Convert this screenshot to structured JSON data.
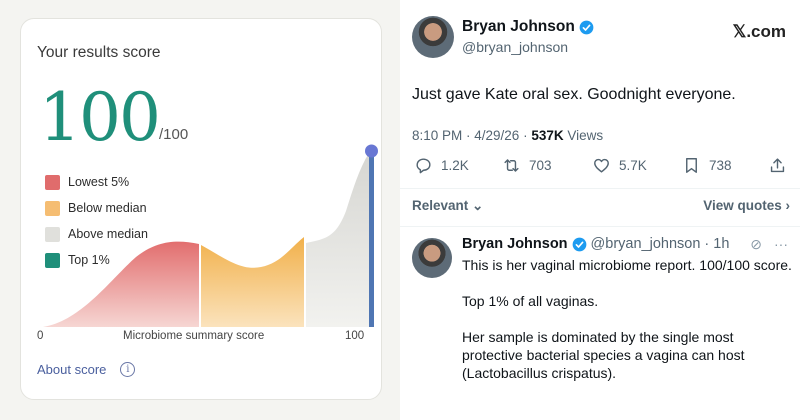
{
  "score_card": {
    "title": "Your results score",
    "score": "100",
    "score_max": "/100",
    "legend": [
      {
        "label": "Lowest 5%",
        "color": "#e06c6c"
      },
      {
        "label": "Below median",
        "color": "#f5bd72"
      },
      {
        "label": "Above median",
        "color": "#e0e0dc"
      },
      {
        "label": "Top 1%",
        "color": "#1f8f7a"
      }
    ],
    "axis_min": "0",
    "axis_title": "Microbiome summary score",
    "axis_max": "100",
    "about_link": "About score",
    "marker_value": 100
  },
  "tweet": {
    "author_name": "Bryan Johnson",
    "author_handle": "@bryan_johnson",
    "site": "𝕏.com",
    "text": "Just gave Kate oral sex. Goodnight everyone.",
    "time_date": "8:10 PM · 4/29/26 · ",
    "views_count": "537K",
    "views_label": " Views",
    "actions": {
      "replies": "1.2K",
      "reposts": "703",
      "likes": "5.7K",
      "bookmarks": "738"
    },
    "sort_label": "Relevant ⌄",
    "view_quotes": "View quotes ›"
  },
  "reply": {
    "author_name": "Bryan Johnson",
    "author_handle": "@bryan_johnson · 1h",
    "paragraphs": [
      "This is her vaginal microbiome report. 100/100 score.",
      "Top 1% of all vaginas.",
      "Her sample is dominated by the single most protective bacterial species a vagina can host (Lactobacillus crispatus)."
    ]
  },
  "colors": {
    "accent_teal": "#1f8f7a",
    "link_blue": "#4a5f9e",
    "verified_blue": "#1d9bf0"
  }
}
